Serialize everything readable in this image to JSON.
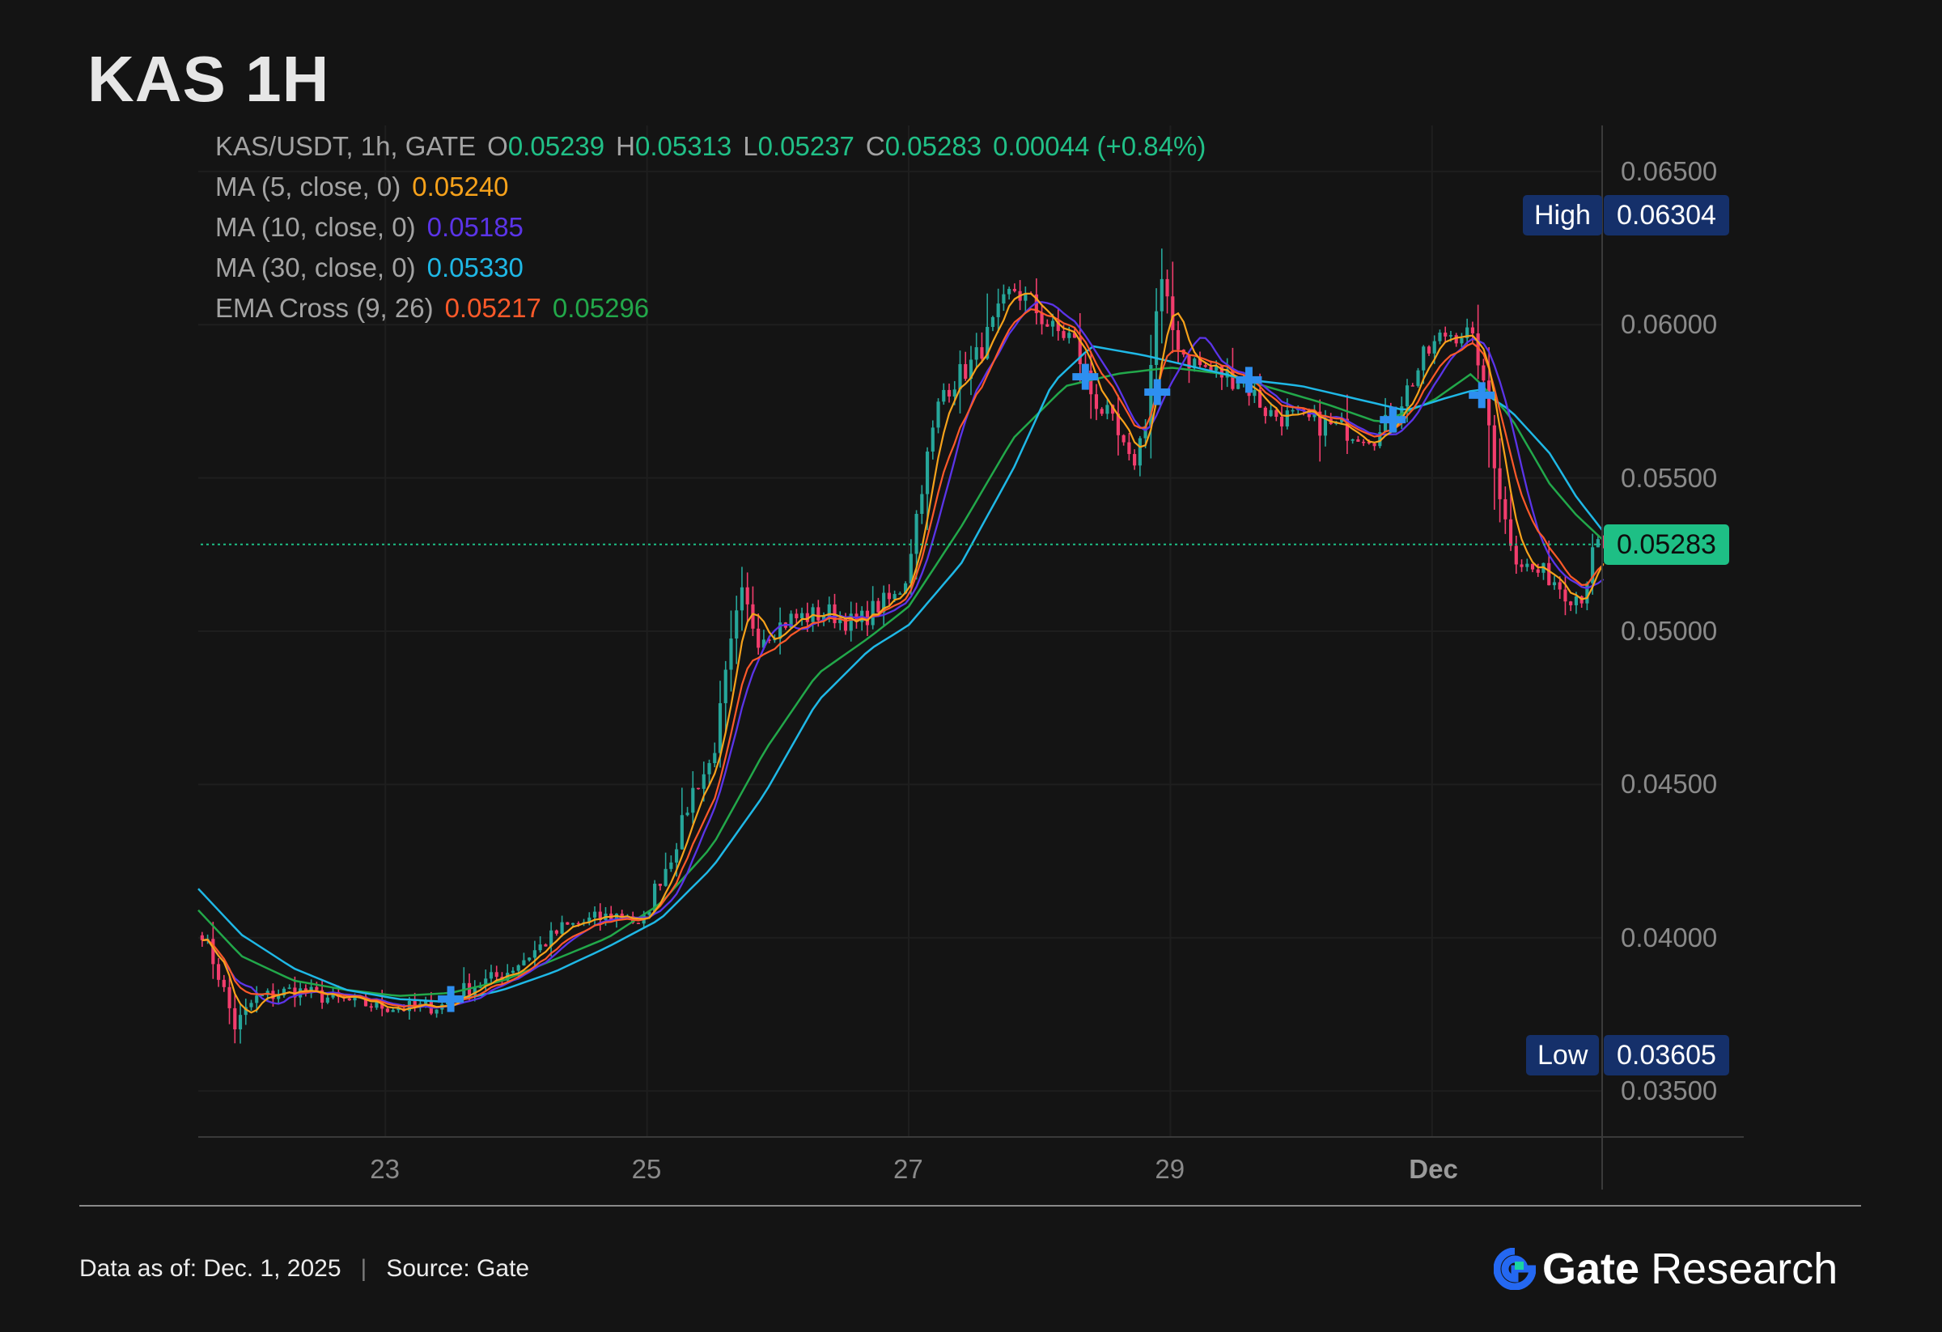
{
  "title": "KAS 1H",
  "legend": {
    "symbol": "KAS/USDT, 1h, GATE",
    "open_label": "O",
    "open": "0.05239",
    "high_label": "H",
    "high": "0.05313",
    "low_label": "L",
    "low": "0.05237",
    "close_label": "C",
    "close": "0.05283",
    "change": "0.00044 (+0.84%)",
    "ma5_label": "MA (5, close, 0)",
    "ma5_value": "0.05240",
    "ma10_label": "MA (10, close, 0)",
    "ma10_value": "0.05185",
    "ma30_label": "MA (30, close, 0)",
    "ma30_value": "0.05330",
    "ema_label": "EMA Cross (9, 26)",
    "ema9_value": "0.05217",
    "ema26_value": "0.05296"
  },
  "markers": {
    "high_label": "High",
    "high_value": "0.06304",
    "low_label": "Low",
    "low_value": "0.03605",
    "last_value": "0.05283"
  },
  "chart_data": {
    "type": "line",
    "y_ticks": [
      "0.06500",
      "0.06000",
      "0.05500",
      "0.05000",
      "0.04500",
      "0.04000",
      "0.03500"
    ],
    "x_ticks": [
      "23",
      "25",
      "27",
      "29",
      "Dec"
    ],
    "ylim": [
      0.0335,
      0.0665
    ],
    "x_range_days": [
      21.57,
      32.3
    ],
    "colors": {
      "up": "#26a69a",
      "down": "#f23d6d",
      "ma5": "#f7a21b",
      "ma10": "#5b34e8",
      "ma30": "#1fb8e6",
      "ema9": "#ff5a2a",
      "ema26": "#22a84a",
      "cross": "#2e8ff0"
    },
    "price_path": [
      [
        21.6,
        0.0402
      ],
      [
        21.75,
        0.0385
      ],
      [
        21.85,
        0.0371
      ],
      [
        22.0,
        0.038
      ],
      [
        22.3,
        0.0383
      ],
      [
        22.6,
        0.038
      ],
      [
        22.9,
        0.0378
      ],
      [
        23.2,
        0.0377
      ],
      [
        23.45,
        0.0378
      ],
      [
        23.6,
        0.0383
      ],
      [
        23.9,
        0.0388
      ],
      [
        24.15,
        0.0396
      ],
      [
        24.35,
        0.0403
      ],
      [
        24.6,
        0.0406
      ],
      [
        24.85,
        0.0408
      ],
      [
        24.95,
        0.0402
      ],
      [
        25.05,
        0.0415
      ],
      [
        25.2,
        0.0428
      ],
      [
        25.35,
        0.0448
      ],
      [
        25.5,
        0.0458
      ],
      [
        25.62,
        0.049
      ],
      [
        25.72,
        0.0512
      ],
      [
        25.85,
        0.0498
      ],
      [
        26.1,
        0.0504
      ],
      [
        26.4,
        0.0506
      ],
      [
        26.6,
        0.0502
      ],
      [
        26.75,
        0.0508
      ],
      [
        26.9,
        0.0511
      ],
      [
        26.98,
        0.0518
      ],
      [
        27.1,
        0.0548
      ],
      [
        27.25,
        0.0578
      ],
      [
        27.5,
        0.0588
      ],
      [
        27.65,
        0.06
      ],
      [
        27.8,
        0.0612
      ],
      [
        27.95,
        0.0606
      ],
      [
        28.1,
        0.0598
      ],
      [
        28.25,
        0.0596
      ],
      [
        28.4,
        0.0577
      ],
      [
        28.55,
        0.0568
      ],
      [
        28.7,
        0.0553
      ],
      [
        28.8,
        0.0566
      ],
      [
        28.92,
        0.0615
      ],
      [
        29.02,
        0.0598
      ],
      [
        29.12,
        0.0589
      ],
      [
        29.3,
        0.0585
      ],
      [
        29.55,
        0.0582
      ],
      [
        29.75,
        0.0571
      ],
      [
        30.0,
        0.0569
      ],
      [
        30.2,
        0.0567
      ],
      [
        30.45,
        0.0565
      ],
      [
        30.6,
        0.0564
      ],
      [
        30.8,
        0.0578
      ],
      [
        30.95,
        0.059
      ],
      [
        31.1,
        0.0597
      ],
      [
        31.25,
        0.0598
      ],
      [
        31.35,
        0.059
      ],
      [
        31.45,
        0.0563
      ],
      [
        31.55,
        0.0537
      ],
      [
        31.65,
        0.0524
      ],
      [
        31.75,
        0.052
      ],
      [
        31.9,
        0.0518
      ],
      [
        32.05,
        0.0512
      ],
      [
        32.15,
        0.0512
      ],
      [
        32.25,
        0.0528
      ]
    ],
    "ema26_path": [
      [
        21.57,
        0.0409
      ],
      [
        21.9,
        0.0394
      ],
      [
        22.3,
        0.0386
      ],
      [
        22.7,
        0.0383
      ],
      [
        23.1,
        0.0381
      ],
      [
        23.5,
        0.0382
      ],
      [
        23.9,
        0.0386
      ],
      [
        24.3,
        0.0393
      ],
      [
        24.7,
        0.04
      ],
      [
        25.1,
        0.0411
      ],
      [
        25.5,
        0.043
      ],
      [
        25.9,
        0.0461
      ],
      [
        26.3,
        0.0486
      ],
      [
        26.7,
        0.0498
      ],
      [
        27.0,
        0.0508
      ],
      [
        27.4,
        0.0534
      ],
      [
        27.8,
        0.0563
      ],
      [
        28.2,
        0.058
      ],
      [
        28.6,
        0.0584
      ],
      [
        29.0,
        0.0586
      ],
      [
        29.4,
        0.0584
      ],
      [
        29.8,
        0.0579
      ],
      [
        30.2,
        0.0574
      ],
      [
        30.6,
        0.0568
      ],
      [
        31.0,
        0.0575
      ],
      [
        31.3,
        0.0584
      ],
      [
        31.6,
        0.057
      ],
      [
        31.9,
        0.0548
      ],
      [
        32.1,
        0.0538
      ],
      [
        32.3,
        0.053
      ]
    ],
    "ma30_path": [
      [
        21.57,
        0.0416
      ],
      [
        21.9,
        0.0401
      ],
      [
        22.3,
        0.039
      ],
      [
        22.7,
        0.0383
      ],
      [
        23.1,
        0.038
      ],
      [
        23.5,
        0.0379
      ],
      [
        23.9,
        0.0383
      ],
      [
        24.3,
        0.0389
      ],
      [
        24.7,
        0.0397
      ],
      [
        25.1,
        0.0406
      ],
      [
        25.5,
        0.0423
      ],
      [
        25.9,
        0.0447
      ],
      [
        26.3,
        0.0477
      ],
      [
        26.7,
        0.0494
      ],
      [
        27.0,
        0.0502
      ],
      [
        27.4,
        0.0522
      ],
      [
        27.8,
        0.0553
      ],
      [
        28.1,
        0.0581
      ],
      [
        28.4,
        0.0593
      ],
      [
        28.8,
        0.059
      ],
      [
        29.2,
        0.0586
      ],
      [
        29.6,
        0.0582
      ],
      [
        30.0,
        0.058
      ],
      [
        30.4,
        0.0576
      ],
      [
        30.8,
        0.0572
      ],
      [
        31.1,
        0.0576
      ],
      [
        31.35,
        0.0579
      ],
      [
        31.6,
        0.0572
      ],
      [
        31.9,
        0.0558
      ],
      [
        32.1,
        0.0544
      ],
      [
        32.3,
        0.0533
      ]
    ],
    "cross_markers": [
      [
        23.5,
        0.038
      ],
      [
        28.35,
        0.0583
      ],
      [
        28.9,
        0.0578
      ],
      [
        29.6,
        0.0582
      ],
      [
        30.7,
        0.0569
      ],
      [
        31.38,
        0.0577
      ]
    ]
  },
  "footer": {
    "date_label": "Data as of: Dec. 1,  2025",
    "source_label": "Source:  Gate",
    "brand_gate": "Gate",
    "brand_research": "Research"
  }
}
